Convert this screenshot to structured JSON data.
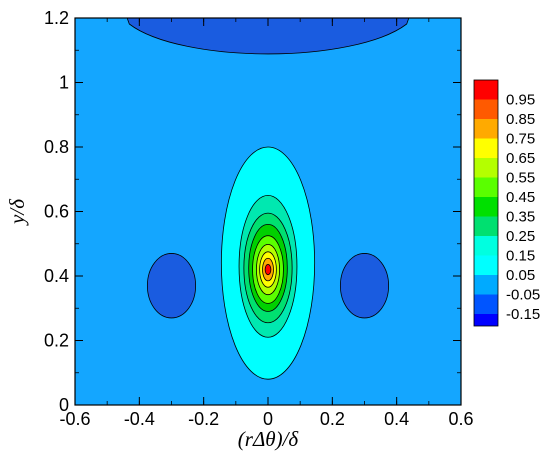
{
  "chart_data": {
    "type": "heatmap",
    "title": "",
    "xlabel": "(rΔθ)/δ",
    "ylabel": "y/δ",
    "xlim": [
      -0.6,
      0.6
    ],
    "ylim": [
      0,
      1.2
    ],
    "xticks": [
      "-0.6",
      "-0.4",
      "-0.2",
      "0",
      "0.2",
      "0.4",
      "0.6"
    ],
    "yticks": [
      "0",
      "0.2",
      "0.4",
      "0.6",
      "0.8",
      "1",
      "1.2"
    ],
    "legend_placement": "right",
    "grid": false,
    "legend": {
      "levels": [
        {
          "label": "0.95",
          "color": "#ff0000"
        },
        {
          "label": "0.85",
          "color": "#ff5a00"
        },
        {
          "label": "0.75",
          "color": "#ffaa00"
        },
        {
          "label": "0.65",
          "color": "#ffff00"
        },
        {
          "label": "0.55",
          "color": "#b4ff00"
        },
        {
          "label": "0.45",
          "color": "#5aff00"
        },
        {
          "label": "0.35",
          "color": "#00e000"
        },
        {
          "label": "0.25",
          "color": "#00e070"
        },
        {
          "label": "0.15",
          "color": "#00ffe0"
        },
        {
          "label": "0.05",
          "color": "#00ffff"
        },
        {
          "label": "-0.05",
          "color": "#00aaff"
        },
        {
          "label": "-0.15",
          "color": "#0055ff"
        },
        {
          "label": "",
          "color": "#0000ff"
        }
      ]
    },
    "background_level": 0.05,
    "regions": [
      {
        "name": "top-band",
        "value": -0.1,
        "color": "#1a5ce0",
        "center": [
          0.0,
          1.16
        ],
        "radius": [
          0.44,
          0.13
        ]
      },
      {
        "name": "left-lobe",
        "value": -0.1,
        "color": "#1a5ce0",
        "center": [
          -0.3,
          0.37
        ],
        "radius": [
          0.075,
          0.1
        ]
      },
      {
        "name": "right-lobe",
        "value": -0.1,
        "color": "#1a5ce0",
        "center": [
          0.3,
          0.37
        ],
        "radius": [
          0.075,
          0.1
        ]
      },
      {
        "name": "peak-level-0.15",
        "value": 0.15,
        "color": "#00ffff",
        "center": [
          0.0,
          0.44
        ],
        "radius": [
          0.145,
          0.36
        ]
      },
      {
        "name": "peak-level-0.25",
        "value": 0.25,
        "color": "#00e8b0",
        "center": [
          0.0,
          0.43
        ],
        "radius": [
          0.09,
          0.22
        ]
      },
      {
        "name": "peak-level-0.35",
        "value": 0.35,
        "color": "#00e070",
        "center": [
          0.0,
          0.425
        ],
        "radius": [
          0.075,
          0.17
        ]
      },
      {
        "name": "peak-level-0.45",
        "value": 0.45,
        "color": "#00d000",
        "center": [
          0.0,
          0.425
        ],
        "radius": [
          0.06,
          0.135
        ]
      },
      {
        "name": "peak-level-0.55",
        "value": 0.55,
        "color": "#5aff00",
        "center": [
          0.0,
          0.42
        ],
        "radius": [
          0.048,
          0.105
        ]
      },
      {
        "name": "peak-level-0.65",
        "value": 0.65,
        "color": "#b4ff00",
        "center": [
          0.0,
          0.42
        ],
        "radius": [
          0.036,
          0.078
        ]
      },
      {
        "name": "peak-level-0.75",
        "value": 0.75,
        "color": "#ffff00",
        "center": [
          0.0,
          0.42
        ],
        "radius": [
          0.026,
          0.055
        ]
      },
      {
        "name": "peak-level-0.85",
        "value": 0.85,
        "color": "#ffaa00",
        "center": [
          0.0,
          0.42
        ],
        "radius": [
          0.017,
          0.035
        ]
      },
      {
        "name": "peak-level-0.95",
        "value": 0.95,
        "color": "#ff0000",
        "center": [
          0.0,
          0.42
        ],
        "radius": [
          0.009,
          0.016
        ]
      }
    ]
  }
}
